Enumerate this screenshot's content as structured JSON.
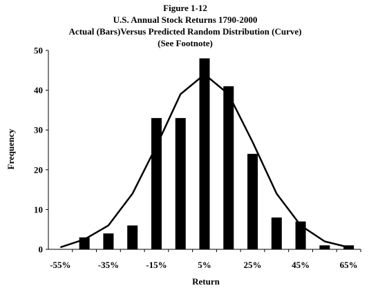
{
  "chart_data": {
    "type": "bar",
    "title_lines": [
      "Figure 1-12",
      "U.S. Annual Stock Returns 1790-2000",
      "Actual  (Bars)Versus Predicted Random Distribution (Curve)",
      "(See Footnote)"
    ],
    "xlabel": "Return",
    "ylabel": "Frequency",
    "ylim": [
      0,
      50
    ],
    "yticks": [
      "0",
      "10",
      "20",
      "30",
      "40",
      "50"
    ],
    "xlim": [
      -60,
      70
    ],
    "xticks": [
      {
        "value": -55,
        "label": "-55%"
      },
      {
        "value": -35,
        "label": "-35%"
      },
      {
        "value": -15,
        "label": "-15%"
      },
      {
        "value": 5,
        "label": "5%"
      },
      {
        "value": 25,
        "label": "25%"
      },
      {
        "value": 45,
        "label": "45%"
      },
      {
        "value": 65,
        "label": "65%"
      }
    ],
    "grid": false,
    "series": [
      {
        "type": "bar",
        "x": [
          -45,
          -35,
          -25,
          -15,
          -5,
          5,
          15,
          25,
          35,
          45,
          55,
          65
        ],
        "values": [
          3,
          4,
          6,
          33,
          33,
          48,
          41,
          24,
          8,
          7,
          1,
          1
        ],
        "color": "#000000"
      },
      {
        "type": "line",
        "x": [
          -55,
          -45,
          -35,
          -25,
          -15,
          -5,
          5,
          15,
          25,
          35,
          45,
          55,
          65
        ],
        "values": [
          0.5,
          2.5,
          6,
          14,
          26,
          39,
          44,
          39,
          27,
          14,
          6,
          2,
          0.5
        ],
        "color": "#000000"
      }
    ]
  }
}
